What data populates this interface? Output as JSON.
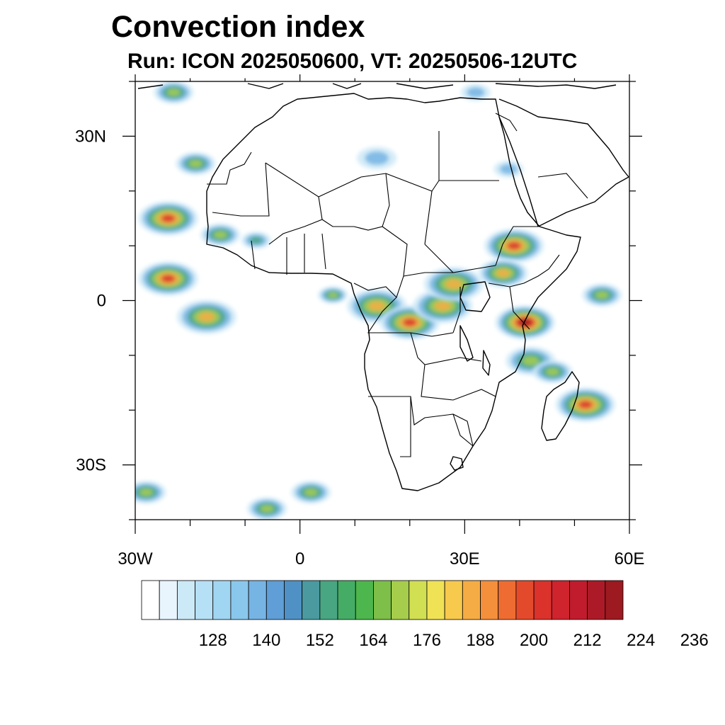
{
  "title": "Convection index",
  "subtitle": "Run: ICON 2025050600,  VT: 20250506-12UTC",
  "map": {
    "projection": "equirectangular",
    "lon_range": [
      -30,
      60
    ],
    "lat_range": [
      -40,
      40
    ],
    "y_ticks": [
      {
        "lat": 30,
        "label": "30N"
      },
      {
        "lat": 0,
        "label": "0"
      },
      {
        "lat": -30,
        "label": "30S"
      }
    ],
    "x_ticks": [
      {
        "lon": -30,
        "label": "30W"
      },
      {
        "lon": 0,
        "label": "0"
      },
      {
        "lon": 30,
        "label": "30E"
      },
      {
        "lon": 60,
        "label": "60E"
      }
    ],
    "minor_tick_step_deg": 10,
    "features": [
      "coastlines",
      "country-borders"
    ]
  },
  "colorbar": {
    "start": 116,
    "step": 4,
    "labels": [
      "128",
      "140",
      "152",
      "164",
      "176",
      "188",
      "200",
      "212",
      "224",
      "236"
    ],
    "label_values": [
      128,
      140,
      152,
      164,
      176,
      188,
      200,
      212,
      224,
      236
    ],
    "colors": [
      "#ffffff",
      "#e8f5fc",
      "#cce9f7",
      "#b6e0f5",
      "#a1d6f2",
      "#8ac7ec",
      "#76b4e4",
      "#5f9ed6",
      "#4f91c4",
      "#4a9aa0",
      "#48a682",
      "#45ac65",
      "#4db64c",
      "#7dbf48",
      "#a6cd4c",
      "#d1df52",
      "#f0e255",
      "#f7c94c",
      "#f6ac44",
      "#f48f3c",
      "#ee6c31",
      "#e34a2c",
      "#db322c",
      "#cf232d",
      "#c01c2d",
      "#ad1a27",
      "#9c1a20"
    ]
  },
  "convection_cells": [
    {
      "lon": -24,
      "lat": 15,
      "peak": 200,
      "size": 3
    },
    {
      "lon": -19,
      "lat": 25,
      "peak": 176,
      "size": 2
    },
    {
      "lon": -23,
      "lat": 38,
      "peak": 172,
      "size": 2
    },
    {
      "lon": -14.5,
      "lat": 12,
      "peak": 176,
      "size": 2
    },
    {
      "lon": -8,
      "lat": 11,
      "peak": 164,
      "size": 1.5
    },
    {
      "lon": -24,
      "lat": 4,
      "peak": 200,
      "size": 3
    },
    {
      "lon": -17,
      "lat": -3,
      "peak": 190,
      "size": 3
    },
    {
      "lon": 6,
      "lat": 1,
      "peak": 168,
      "size": 1.5
    },
    {
      "lon": 14,
      "lat": -1,
      "peak": 196,
      "size": 3
    },
    {
      "lon": 20,
      "lat": -4,
      "peak": 200,
      "size": 3
    },
    {
      "lon": 26,
      "lat": -1,
      "peak": 196,
      "size": 3
    },
    {
      "lon": 28,
      "lat": 3,
      "peak": 188,
      "size": 3
    },
    {
      "lon": 39,
      "lat": 10,
      "peak": 208,
      "size": 3
    },
    {
      "lon": 37,
      "lat": 5,
      "peak": 188,
      "size": 2.5
    },
    {
      "lon": 41,
      "lat": -4,
      "peak": 220,
      "size": 3
    },
    {
      "lon": 42,
      "lat": -11,
      "peak": 172,
      "size": 2.5
    },
    {
      "lon": 46,
      "lat": -13,
      "peak": 176,
      "size": 2
    },
    {
      "lon": 52,
      "lat": -19,
      "peak": 200,
      "size": 3
    },
    {
      "lon": 55,
      "lat": 1,
      "peak": 176,
      "size": 2
    },
    {
      "lon": 2,
      "lat": -35,
      "peak": 176,
      "size": 2
    },
    {
      "lon": -6,
      "lat": -38,
      "peak": 176,
      "size": 2
    },
    {
      "lon": -28,
      "lat": -35,
      "peak": 168,
      "size": 2
    },
    {
      "lon": 14,
      "lat": 26,
      "peak": 140,
      "size": 2
    },
    {
      "lon": 38,
      "lat": 24,
      "peak": 140,
      "size": 1.5
    },
    {
      "lon": 32,
      "lat": 38,
      "peak": 150,
      "size": 1.5
    }
  ]
}
